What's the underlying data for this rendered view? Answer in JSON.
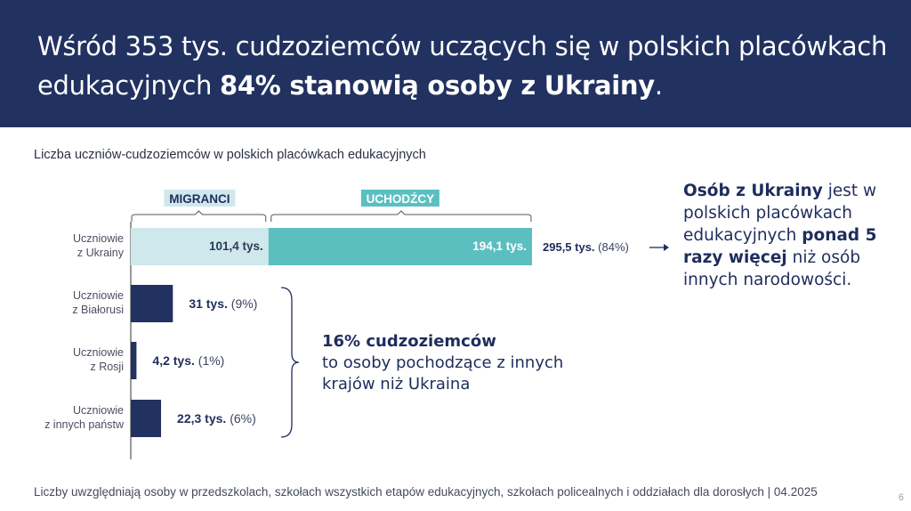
{
  "header": {
    "title_part1": "Wśród 353 tys. cudzoziemców uczących się w polskich placówkach edukacyjnych ",
    "title_bold": "84% stanowią osoby z Ukrainy",
    "title_end": "."
  },
  "subtitle": "Liczba uczniów-cudzoziemców w polskich placówkach edukacyjnych",
  "footer": "Liczby uwzględniają osoby w przedszkolach, szkołach wszystkich etapów edukacyjnych,  szkołach policealnych i oddziałach dla dorosłych | 04.2025",
  "page_number": "6",
  "colors": {
    "navy": "#213160",
    "migranci": "#cfe8ec",
    "uchodzcy": "#5bbfc0",
    "text": "#1f2d5c"
  },
  "chart_data": {
    "type": "bar",
    "orientation": "horizontal",
    "unit": "tys.",
    "groups": [
      {
        "label": "MIGRANCI",
        "color": "#cfe8ec"
      },
      {
        "label": "UCHODŹCY",
        "color": "#5bbfc0"
      }
    ],
    "categories": [
      {
        "label_line1": "Uczniowie",
        "label_line2": "z Ukrainy",
        "segments": [
          {
            "value": 101.4,
            "label": "101,4 tys.",
            "color": "#cfe8ec"
          },
          {
            "value": 194.1,
            "label": "194,1 tys.",
            "color": "#5bbfc0"
          }
        ],
        "total_label": "295,5 tys.",
        "share_label": "(84%)"
      },
      {
        "label_line1": "Uczniowie",
        "label_line2": "z Białorusi",
        "segments": [
          {
            "value": 31,
            "color": "#213160"
          }
        ],
        "total_label": "31 tys.",
        "share_label": "(9%)"
      },
      {
        "label_line1": "Uczniowie",
        "label_line2": "z Rosji",
        "segments": [
          {
            "value": 4.2,
            "color": "#213160"
          }
        ],
        "total_label": "4,2 tys.",
        "share_label": "(1%)"
      },
      {
        "label_line1": "Uczniowie",
        "label_line2": "z innych państw",
        "segments": [
          {
            "value": 22.3,
            "color": "#213160"
          }
        ],
        "total_label": "22,3 tys.",
        "share_label": "(6%)"
      }
    ]
  },
  "side_note": {
    "bold1": "Osób z Ukrainy",
    "text1": " jest w polskich placówkach edukacyjnych ",
    "bold2": "ponad 5 razy więcej",
    "text2": " niż osób innych narodowości."
  },
  "mid_note": {
    "bold": "16% cudzoziemców",
    "text": "to osoby pochodzące z innych krajów niż Ukraina"
  }
}
